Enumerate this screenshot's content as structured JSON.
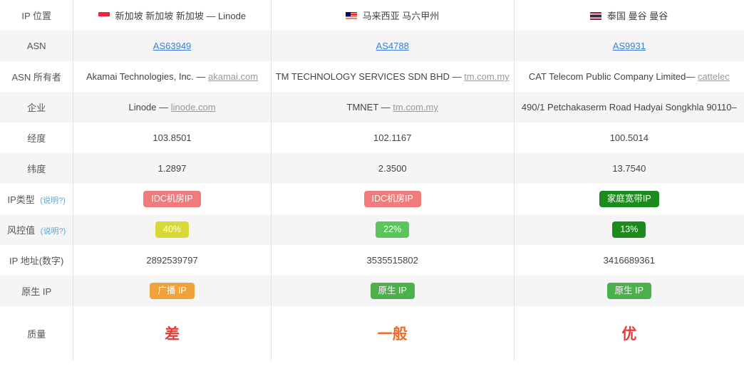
{
  "labels": {
    "ip_location": "IP 位置",
    "asn": "ASN",
    "asn_owner": "ASN 所有者",
    "company": "企业",
    "longitude": "经度",
    "latitude": "纬度",
    "ip_type": "IP类型",
    "risk": "风控值",
    "ip_numeric": "IP 地址(数字)",
    "native_ip": "原生 IP",
    "quality": "质量",
    "help": "(说明?)"
  },
  "colors": {
    "row_odd": "#ffffff",
    "row_even": "#f5f5f5",
    "border": "#e2e2e2",
    "link": "#3b7dd8",
    "domain": "#999999",
    "help": "#5aa7d6",
    "badge_idc": "#f17a7a",
    "badge_home": "#1c8a1c",
    "risk_40": "#d8d836",
    "risk_22": "#5bc45b",
    "risk_13": "#1c8a1c",
    "native_broadcast": "#f2a23a",
    "native_native": "#4cb04c",
    "quality_bad": "#e23b3b",
    "quality_avg": "#f06a2a",
    "quality_good": "#e23b3b"
  },
  "columns": [
    {
      "flag": "sg",
      "location": "新加坡 新加坡 新加坡 — Linode",
      "asn": "AS63949",
      "asn_owner_prefix": "Akamai Technologies, Inc. — ",
      "asn_owner_link": "akamai.com",
      "company_prefix": "Linode — ",
      "company_link": "linode.com",
      "lon": "103.8501",
      "lat": "1.2897",
      "ip_type_label": "IDC机房IP",
      "ip_type_color": "#f17a7a",
      "risk_label": "40%",
      "risk_color": "#d8d836",
      "ip_numeric": "2892539797",
      "native_label": "广播 IP",
      "native_color": "#f2a23a",
      "quality_label": "差",
      "quality_color": "#e23b3b"
    },
    {
      "flag": "my",
      "location": "马来西亚 马六甲州",
      "asn": "AS4788",
      "asn_owner_prefix": "TM TECHNOLOGY SERVICES SDN BHD — ",
      "asn_owner_link": "tm.com.my",
      "company_prefix": "TMNET — ",
      "company_link": "tm.com.my",
      "lon": "102.1167",
      "lat": "2.3500",
      "ip_type_label": "IDC机房IP",
      "ip_type_color": "#f17a7a",
      "risk_label": "22%",
      "risk_color": "#5bc45b",
      "ip_numeric": "3535515802",
      "native_label": "原生 IP",
      "native_color": "#4cb04c",
      "quality_label": "一般",
      "quality_color": "#f06a2a"
    },
    {
      "flag": "th",
      "location": "泰国 曼谷 曼谷",
      "asn": "AS9931",
      "asn_owner_prefix": "CAT Telecom Public Company Limited— ",
      "asn_owner_link": "cattelec",
      "company_prefix": "490/1 Petchakaserm Road Hadyai Songkhla 90110–",
      "company_link": "",
      "lon": "100.5014",
      "lat": "13.7540",
      "ip_type_label": "家庭宽带IP",
      "ip_type_color": "#1c8a1c",
      "risk_label": "13%",
      "risk_color": "#1c8a1c",
      "ip_numeric": "3416689361",
      "native_label": "原生 IP",
      "native_color": "#4cb04c",
      "quality_label": "优",
      "quality_color": "#e23b3b"
    }
  ]
}
